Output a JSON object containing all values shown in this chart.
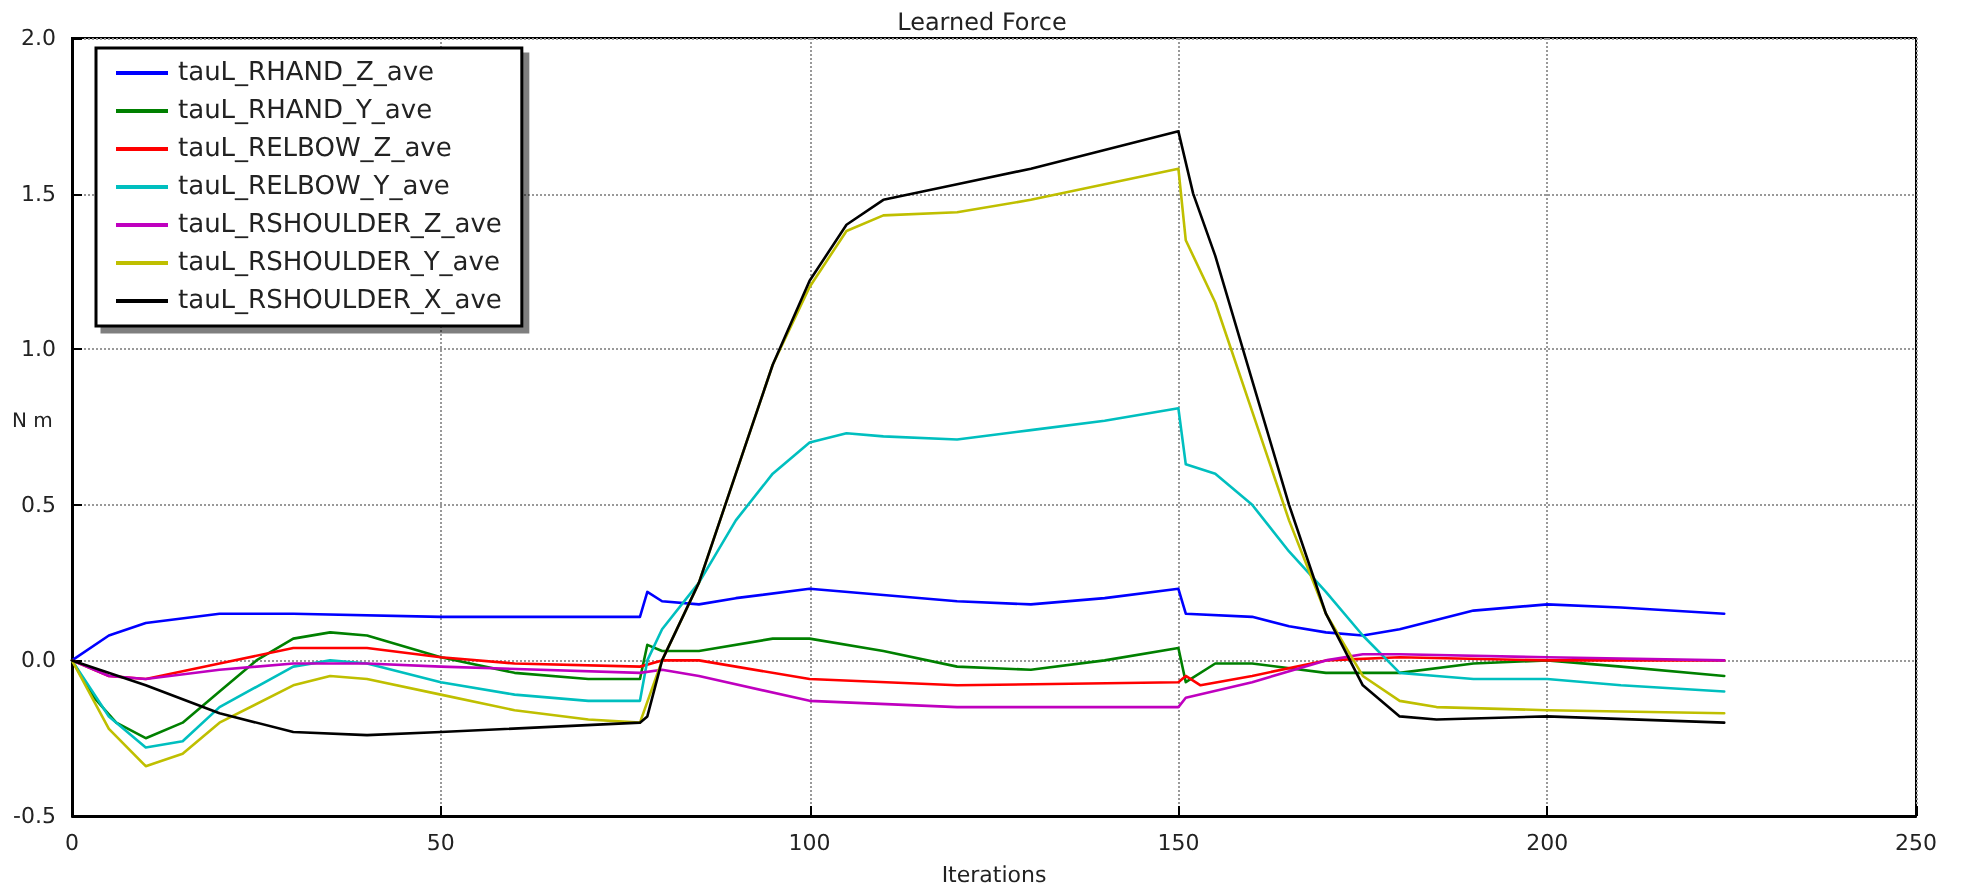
{
  "chart_data": {
    "type": "line",
    "title": "Learned Force",
    "xlabel": "Iterations",
    "ylabel": "N m",
    "xlim": [
      0,
      250
    ],
    "xticks": [
      0,
      50,
      100,
      150,
      200,
      250
    ],
    "ylim": [
      -0.5,
      2.0
    ],
    "yticks": [
      {
        "value": -0.5,
        "label": "-0.5"
      },
      {
        "value": 0,
        "label": "0.0"
      },
      {
        "value": 0.5,
        "label": "0.5"
      },
      {
        "value": 1,
        "label": "1.0"
      },
      {
        "value": 1.5,
        "label": "1.5"
      },
      {
        "value": 2,
        "label": "2.0"
      }
    ],
    "grid": true,
    "legend": "top left",
    "marker": "none",
    "line_style": "solid",
    "series": [
      {
        "name": "tauL_RHAND_Z_ave",
        "color": "#0000ff",
        "x": [
          0,
          5,
          10,
          20,
          30,
          50,
          77,
          78,
          80,
          85,
          90,
          100,
          110,
          120,
          130,
          140,
          150,
          151,
          160,
          165,
          170,
          175,
          180,
          190,
          200,
          210,
          224
        ],
        "values": [
          0,
          0.08,
          0.12,
          0.15,
          0.15,
          0.14,
          0.14,
          0.22,
          0.19,
          0.18,
          0.2,
          0.23,
          0.21,
          0.19,
          0.18,
          0.2,
          0.23,
          0.15,
          0.14,
          0.11,
          0.09,
          0.08,
          0.1,
          0.16,
          0.18,
          0.17,
          0.15
        ]
      },
      {
        "name": "tauL_RHAND_Y_ave",
        "color": "#008000",
        "x": [
          0,
          3,
          6,
          10,
          15,
          20,
          25,
          30,
          35,
          40,
          50,
          60,
          70,
          77,
          78,
          80,
          85,
          95,
          100,
          110,
          120,
          130,
          140,
          150,
          151,
          155,
          160,
          170,
          180,
          190,
          200,
          210,
          224
        ],
        "values": [
          0,
          -0.12,
          -0.2,
          -0.25,
          -0.2,
          -0.1,
          0,
          0.07,
          0.09,
          0.08,
          0.01,
          -0.04,
          -0.06,
          -0.06,
          0.05,
          0.03,
          0.03,
          0.07,
          0.07,
          0.03,
          -0.02,
          -0.03,
          0,
          0.04,
          -0.07,
          -0.01,
          -0.01,
          -0.04,
          -0.04,
          -0.01,
          0,
          -0.02,
          -0.05
        ]
      },
      {
        "name": "tauL_RELBOW_Z_ave",
        "color": "#ff0000",
        "x": [
          0,
          5,
          10,
          20,
          30,
          40,
          50,
          60,
          77,
          80,
          85,
          100,
          120,
          150,
          151,
          153,
          160,
          170,
          180,
          200,
          224
        ],
        "values": [
          0,
          -0.05,
          -0.06,
          -0.01,
          0.04,
          0.04,
          0.01,
          -0.01,
          -0.02,
          0,
          0,
          -0.06,
          -0.08,
          -0.07,
          -0.05,
          -0.08,
          -0.05,
          0,
          0.01,
          0,
          0
        ]
      },
      {
        "name": "tauL_RELBOW_Y_ave",
        "color": "#00bfbf",
        "x": [
          0,
          5,
          10,
          15,
          20,
          30,
          35,
          40,
          50,
          60,
          70,
          77,
          78,
          80,
          85,
          90,
          95,
          100,
          105,
          110,
          120,
          130,
          140,
          150,
          151,
          155,
          160,
          165,
          170,
          175,
          180,
          185,
          190,
          200,
          210,
          224
        ],
        "values": [
          0,
          -0.18,
          -0.28,
          -0.26,
          -0.15,
          -0.02,
          0,
          -0.01,
          -0.07,
          -0.11,
          -0.13,
          -0.13,
          0,
          0.1,
          0.25,
          0.45,
          0.6,
          0.7,
          0.73,
          0.72,
          0.71,
          0.74,
          0.77,
          0.81,
          0.63,
          0.6,
          0.5,
          0.35,
          0.22,
          0.08,
          -0.04,
          -0.05,
          -0.06,
          -0.06,
          -0.08,
          -0.1
        ]
      },
      {
        "name": "tauL_RSHOULDER_Z_ave",
        "color": "#bf00bf",
        "x": [
          0,
          5,
          10,
          20,
          30,
          40,
          50,
          77,
          80,
          85,
          100,
          120,
          150,
          151,
          160,
          170,
          175,
          180,
          200,
          224
        ],
        "values": [
          0,
          -0.05,
          -0.06,
          -0.03,
          -0.01,
          -0.01,
          -0.02,
          -0.04,
          -0.03,
          -0.05,
          -0.13,
          -0.15,
          -0.15,
          -0.12,
          -0.07,
          0,
          0.02,
          0.02,
          0.01,
          0
        ]
      },
      {
        "name": "tauL_RSHOULDER_Y_ave",
        "color": "#bfbf00",
        "x": [
          0,
          5,
          10,
          15,
          20,
          30,
          35,
          40,
          50,
          60,
          70,
          77,
          80,
          85,
          90,
          95,
          100,
          105,
          110,
          120,
          130,
          140,
          150,
          151,
          155,
          160,
          165,
          170,
          175,
          180,
          185,
          200,
          224
        ],
        "values": [
          0,
          -0.22,
          -0.34,
          -0.3,
          -0.2,
          -0.08,
          -0.05,
          -0.06,
          -0.11,
          -0.16,
          -0.19,
          -0.2,
          0,
          0.25,
          0.6,
          0.95,
          1.2,
          1.38,
          1.43,
          1.44,
          1.48,
          1.53,
          1.58,
          1.35,
          1.15,
          0.8,
          0.45,
          0.15,
          -0.05,
          -0.13,
          -0.15,
          -0.16,
          -0.17
        ]
      },
      {
        "name": "tauL_RSHOULDER_X_ave",
        "color": "#000000",
        "x": [
          0,
          10,
          20,
          30,
          40,
          50,
          77,
          78,
          80,
          85,
          90,
          95,
          100,
          105,
          110,
          120,
          130,
          140,
          150,
          152,
          155,
          160,
          165,
          170,
          175,
          180,
          185,
          200,
          224
        ],
        "values": [
          0,
          -0.08,
          -0.17,
          -0.23,
          -0.24,
          -0.23,
          -0.2,
          -0.18,
          0,
          0.25,
          0.6,
          0.95,
          1.22,
          1.4,
          1.48,
          1.53,
          1.58,
          1.64,
          1.7,
          1.5,
          1.3,
          0.9,
          0.5,
          0.15,
          -0.08,
          -0.18,
          -0.19,
          -0.18,
          -0.2
        ]
      }
    ]
  }
}
